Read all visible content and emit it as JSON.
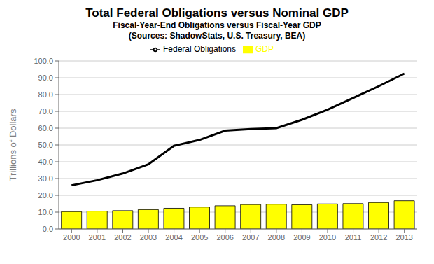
{
  "chart_data": {
    "type": "bar",
    "title": "Total Federal Obligations versus Nominal GDP",
    "subtitle": [
      "Fiscal-Year-End Obligations versus Fiscal-Year GDP",
      "(Sources: ShadowStats, U.S. Treasury, BEA)"
    ],
    "y_label": "Trillions of Dollars",
    "categories": [
      "2000",
      "2001",
      "2002",
      "2003",
      "2004",
      "2005",
      "2006",
      "2007",
      "2008",
      "2009",
      "2010",
      "2011",
      "2012",
      "2013"
    ],
    "series": [
      {
        "name": "GDP",
        "type": "bar",
        "color": "#FFFF00",
        "values": [
          10.3,
          10.6,
          10.9,
          11.5,
          12.3,
          13.0,
          13.8,
          14.5,
          14.7,
          14.4,
          14.9,
          15.1,
          15.7,
          16.8
        ]
      },
      {
        "name": "Federal Obligations",
        "type": "line",
        "color": "#000000",
        "values": [
          26.0,
          29.0,
          33.0,
          38.5,
          49.5,
          53.0,
          58.5,
          59.5,
          60.0,
          65.0,
          71.0,
          78.0,
          85.0,
          92.5
        ]
      }
    ],
    "ylim": [
      0.0,
      100.0
    ],
    "yticks": [
      {
        "value": 0.0,
        "label": "0.0"
      },
      {
        "value": 10.0,
        "label": "10.0"
      },
      {
        "value": 20.0,
        "label": "20.0"
      },
      {
        "value": 30.0,
        "label": "30.0"
      },
      {
        "value": 40.0,
        "label": "40.0"
      },
      {
        "value": 50.0,
        "label": "50.0"
      },
      {
        "value": 60.0,
        "label": "60.0"
      },
      {
        "value": 70.0,
        "label": "70.0"
      },
      {
        "value": 80.0,
        "label": "80.0"
      },
      {
        "value": 90.0,
        "label": "90.0"
      },
      {
        "value": 100.0,
        "label": "100.0"
      }
    ],
    "grid": true,
    "legend": "top"
  }
}
